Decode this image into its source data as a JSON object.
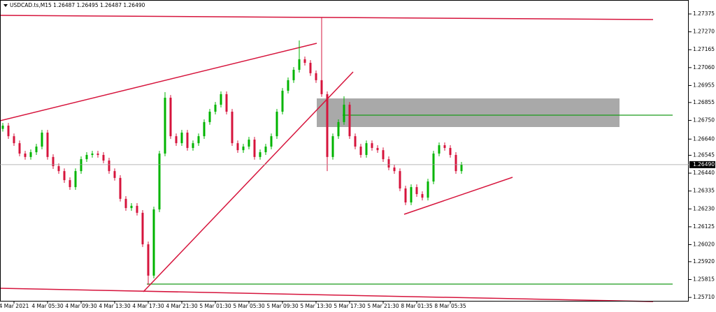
{
  "chart_data": {
    "type": "candlestick",
    "title": "USDCAD.ts,M15  1.26487 1.26495 1.26487 1.26490",
    "open": [
      1.267,
      1.26719,
      1.26657,
      1.26616,
      1.26555,
      1.26535,
      1.26563,
      1.26596,
      1.26678,
      1.26535,
      1.26481,
      1.26452,
      1.26399,
      1.26358,
      1.26452,
      1.26522,
      1.26547,
      1.26555,
      1.26547,
      1.26514,
      1.26452,
      1.26412,
      1.26289,
      1.26235,
      1.26248,
      1.26207,
      1.26022,
      1.25838,
      1.26227,
      1.26555,
      1.26883,
      1.26657,
      1.26616,
      1.26678,
      1.26588,
      1.26616,
      1.26657,
      1.2674,
      1.26801,
      1.26842,
      1.26904,
      1.26801,
      1.26616,
      1.26575,
      1.26596,
      1.26637,
      1.26535,
      1.26563,
      1.26596,
      1.26657,
      1.26801,
      1.26924,
      1.26986,
      1.27047,
      1.27109,
      1.27088,
      1.27027,
      1.26986,
      1.26904,
      1.26535,
      1.26657,
      1.2674,
      1.26842,
      1.26657,
      1.26596,
      1.26547,
      1.26616,
      1.26588,
      1.26575,
      1.26522,
      1.26473,
      1.26452,
      1.2635,
      1.26268,
      1.26358,
      1.26317,
      1.26296,
      1.26391,
      1.26555,
      1.26604,
      1.26588,
      1.26547,
      1.26452
    ],
    "high": [
      1.26735,
      1.26735,
      1.26673,
      1.26632,
      1.26571,
      1.26579,
      1.26612,
      1.26694,
      1.26694,
      1.26551,
      1.26497,
      1.26468,
      1.26415,
      1.26468,
      1.26538,
      1.26563,
      1.26571,
      1.26571,
      1.26563,
      1.2653,
      1.26468,
      1.26428,
      1.26305,
      1.26264,
      1.26264,
      1.26223,
      1.26038,
      1.26243,
      1.26571,
      1.26916,
      1.26899,
      1.26673,
      1.26694,
      1.26694,
      1.26632,
      1.26673,
      1.26756,
      1.26817,
      1.26858,
      1.2692,
      1.2692,
      1.26817,
      1.26632,
      1.26612,
      1.26653,
      1.26653,
      1.26579,
      1.26612,
      1.26673,
      1.26817,
      1.2694,
      1.27002,
      1.27063,
      1.27219,
      1.27125,
      1.27104,
      1.27043,
      1.27355,
      1.2692,
      1.26673,
      1.26756,
      1.26891,
      1.26858,
      1.26673,
      1.26612,
      1.26632,
      1.26632,
      1.26604,
      1.26591,
      1.26538,
      1.26489,
      1.26468,
      1.26366,
      1.26374,
      1.26374,
      1.26333,
      1.26407,
      1.26571,
      1.2662,
      1.2662,
      1.26604,
      1.26563,
      1.26506
    ],
    "low": [
      1.26684,
      1.26641,
      1.266,
      1.26539,
      1.26519,
      1.26519,
      1.26547,
      1.2658,
      1.26519,
      1.26465,
      1.26436,
      1.26383,
      1.26342,
      1.26342,
      1.26436,
      1.26506,
      1.26531,
      1.26531,
      1.26498,
      1.26436,
      1.26396,
      1.26273,
      1.26219,
      1.26219,
      1.26191,
      1.26006,
      1.25784,
      1.25822,
      1.26211,
      1.26539,
      1.26641,
      1.266,
      1.266,
      1.26572,
      1.26572,
      1.266,
      1.26641,
      1.26724,
      1.26785,
      1.26826,
      1.26785,
      1.266,
      1.26559,
      1.26559,
      1.2658,
      1.26519,
      1.26519,
      1.26547,
      1.2658,
      1.26641,
      1.26785,
      1.26908,
      1.2697,
      1.27031,
      1.27072,
      1.27011,
      1.2697,
      1.26888,
      1.26452,
      1.26519,
      1.26641,
      1.26724,
      1.26641,
      1.2658,
      1.26531,
      1.26531,
      1.26572,
      1.26559,
      1.26506,
      1.26457,
      1.26436,
      1.26334,
      1.26252,
      1.26252,
      1.26301,
      1.2628,
      1.2628,
      1.26375,
      1.26539,
      1.26572,
      1.26531,
      1.26436,
      1.26436
    ],
    "close": [
      1.26719,
      1.26657,
      1.26616,
      1.26555,
      1.26535,
      1.26563,
      1.26596,
      1.26678,
      1.26535,
      1.26481,
      1.26452,
      1.26399,
      1.26358,
      1.26452,
      1.26522,
      1.26547,
      1.26555,
      1.26547,
      1.26514,
      1.26452,
      1.26412,
      1.26289,
      1.26235,
      1.26248,
      1.26207,
      1.26022,
      1.25838,
      1.26227,
      1.26555,
      1.26883,
      1.26657,
      1.26616,
      1.26678,
      1.26588,
      1.26616,
      1.26657,
      1.2674,
      1.26801,
      1.26842,
      1.26904,
      1.26801,
      1.26616,
      1.26575,
      1.26596,
      1.26637,
      1.26535,
      1.26563,
      1.26596,
      1.26657,
      1.26801,
      1.26924,
      1.26986,
      1.27047,
      1.27109,
      1.27088,
      1.27027,
      1.26986,
      1.26904,
      1.26535,
      1.26657,
      1.2674,
      1.26842,
      1.26657,
      1.26596,
      1.26547,
      1.26616,
      1.26588,
      1.26575,
      1.26522,
      1.26473,
      1.26452,
      1.2635,
      1.26268,
      1.26358,
      1.26317,
      1.26296,
      1.26391,
      1.26555,
      1.26604,
      1.26588,
      1.26547,
      1.26452,
      1.2649
    ],
    "up_color": "#00b400",
    "down_color": "#d6143c",
    "xlim": [
      -0.5,
      122.625
    ],
    "xticks": [
      {
        "value": 2,
        "label": "4 Mar 2021"
      },
      {
        "value": 8,
        "label": "4 Mar 05:30"
      },
      {
        "value": 14,
        "label": "4 Mar 09:30"
      },
      {
        "value": 20,
        "label": "4 Mar 13:30"
      },
      {
        "value": 26,
        "label": "4 Mar 17:30"
      },
      {
        "value": 32,
        "label": "4 Mar 21:30"
      },
      {
        "value": 38,
        "label": "5 Mar 01:30"
      },
      {
        "value": 44,
        "label": "5 Mar 05:30"
      },
      {
        "value": 50,
        "label": "5 Mar 09:30"
      },
      {
        "value": 56,
        "label": "5 Mar 13:30"
      },
      {
        "value": 62,
        "label": "5 Mar 17:30"
      },
      {
        "value": 68,
        "label": "5 Mar 21:30"
      },
      {
        "value": 74,
        "label": "8 Mar 01:35"
      },
      {
        "value": 80,
        "label": "8 Mar 05:35"
      }
    ],
    "ylim": [
      1.2569,
      1.27457
    ],
    "yticks": [
      1.27375,
      {
        "value": 1.2727,
        "label": "1.27270"
      },
      1.27165,
      {
        "value": 1.2706,
        "label": "1.27060"
      },
      1.26955,
      1.26855,
      {
        "value": 1.2675,
        "label": "1.26750"
      },
      {
        "value": 1.2664,
        "label": "1.26640"
      },
      1.26545,
      {
        "value": 1.2644,
        "label": "1.26440"
      },
      1.26335,
      {
        "value": 1.2623,
        "label": "1.26230"
      },
      1.26125,
      {
        "value": 1.2602,
        "label": "1.26020"
      },
      {
        "value": 1.2592,
        "label": "1.25920"
      },
      1.25815,
      {
        "value": 1.2571,
        "label": "1.25710"
      }
    ],
    "current_price": {
      "value": 1.2649,
      "label": "1.26490"
    }
  }
}
